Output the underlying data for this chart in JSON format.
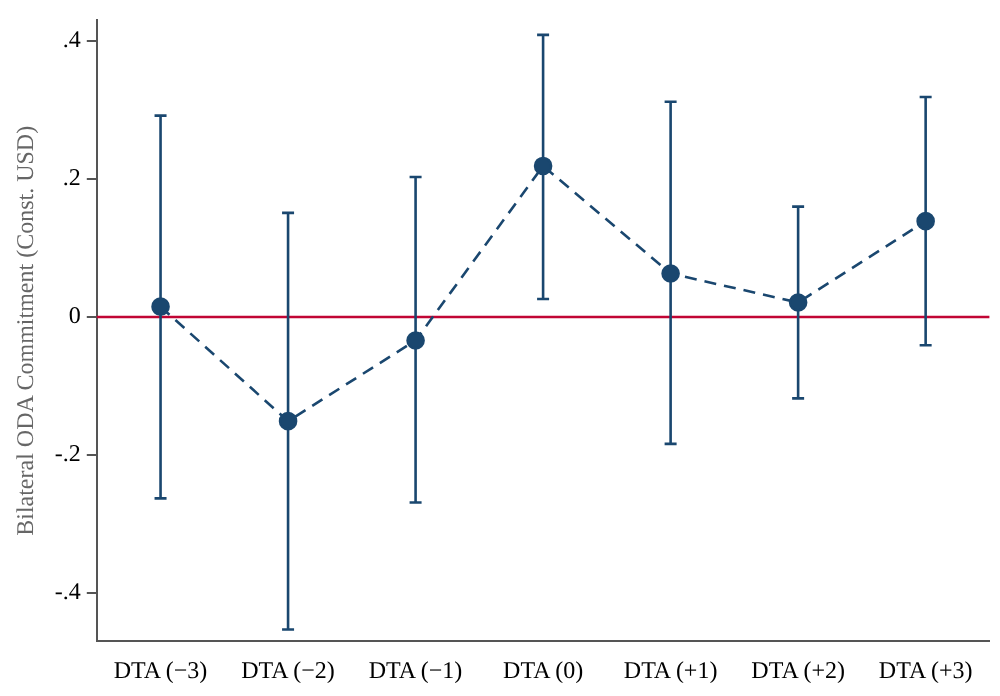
{
  "chart_data": {
    "type": "line",
    "ylabel": "Bilateral ODA Commitment (Const. USD)",
    "categories": [
      "DTA (−3)",
      "DTA (−2)",
      "DTA (−1)",
      "DTA (0)",
      "DTA (+1)",
      "DTA (+2)",
      "DTA (+3)"
    ],
    "series": [
      {
        "color": "#1a476f",
        "values": [
          0.015,
          -0.151,
          -0.034,
          0.219,
          0.063,
          0.021,
          0.139
        ],
        "errors": [
          [
            -0.263,
            0.292
          ],
          [
            -0.453,
            0.151
          ],
          [
            -0.269,
            0.203
          ],
          [
            0.026,
            0.409
          ],
          [
            -0.184,
            0.312
          ],
          [
            -0.118,
            0.16
          ],
          [
            -0.041,
            0.319
          ]
        ]
      }
    ],
    "ylim": [
      -0.47,
      0.43
    ],
    "yticks": [
      {
        "value": -0.4,
        "label": "-.4"
      },
      {
        "value": -0.2,
        "label": "-.2"
      },
      {
        "value": 0,
        "label": "0"
      },
      {
        "value": 0.2,
        "label": ".2"
      },
      {
        "value": 0.4,
        "label": ".4"
      }
    ],
    "ref_lines": [
      {
        "axis": "y",
        "value": 0,
        "color": "#c10534"
      }
    ],
    "grid": false,
    "legend": false,
    "marker": "circle",
    "line_style": "dashed"
  }
}
